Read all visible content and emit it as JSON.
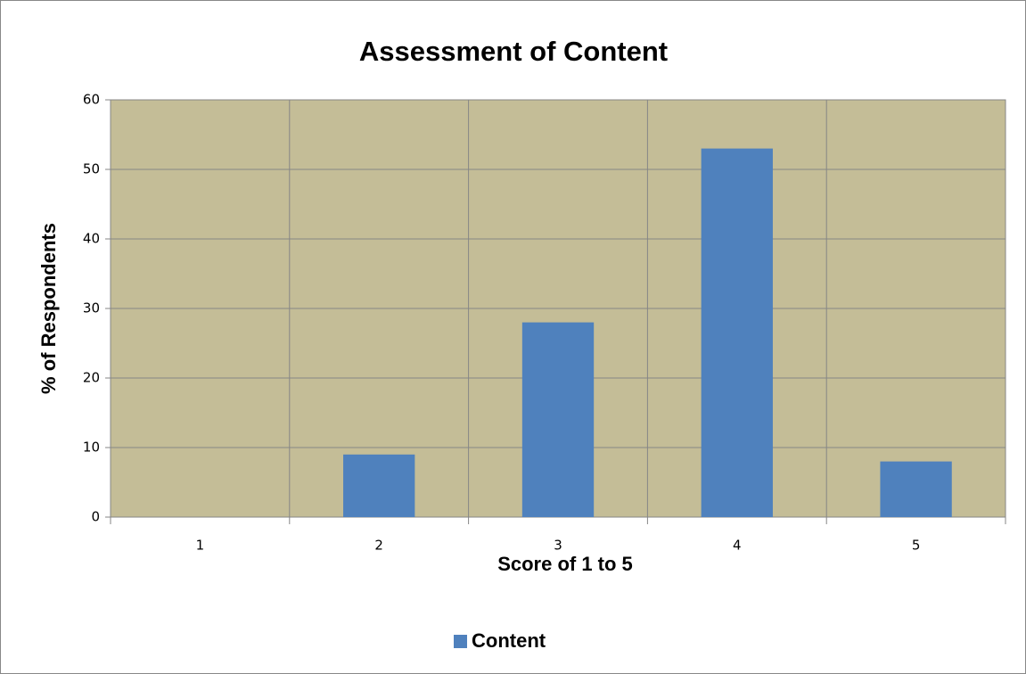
{
  "chart_data": {
    "type": "bar",
    "title": "Assessment of Content",
    "x_label": "Score of 1 to 5",
    "y_label": "% of Respondents",
    "categories": [
      "1",
      "2",
      "3",
      "4",
      "5"
    ],
    "series": [
      {
        "name": "Content",
        "color": "#4f81bd",
        "values": [
          0,
          9,
          28,
          53,
          8
        ]
      }
    ],
    "ylim": [
      0,
      60
    ],
    "yticks": [
      0,
      10,
      20,
      30,
      40,
      50,
      60
    ],
    "grid": true,
    "plot_background": "#c4bd97",
    "legend": "bottom"
  }
}
